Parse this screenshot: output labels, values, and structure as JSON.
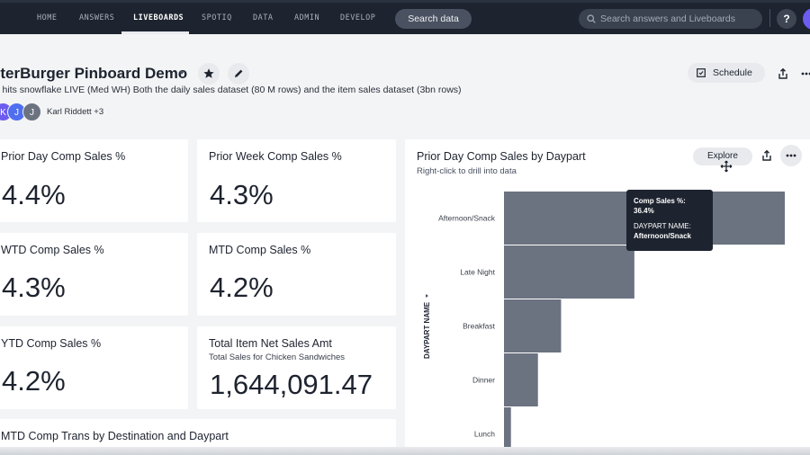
{
  "nav": {
    "items": [
      "HOME",
      "ANSWERS",
      "LIVEBOARDS",
      "SPOTIQ",
      "DATA",
      "ADMIN",
      "DEVELOP"
    ],
    "active": "LIVEBOARDS",
    "search_data_label": "Search data",
    "global_search_placeholder": "Search answers and Liveboards",
    "help_label": "?"
  },
  "header": {
    "title": "nterBurger Pinboard Demo",
    "description": "is hits snowflake LIVE (Med WH) Both the daily sales dataset (80 M rows) and the item sales dataset (3bn rows)",
    "avatars": [
      "K",
      "J",
      "J"
    ],
    "authors": "Karl Riddett +3",
    "schedule_label": "Schedule"
  },
  "kpis": [
    {
      "title": "Prior Day Comp Sales %",
      "value": "4.4%"
    },
    {
      "title": "Prior Week Comp Sales %",
      "value": "4.3%"
    },
    {
      "title": "WTD Comp Sales %",
      "value": "4.3%"
    },
    {
      "title": "MTD Comp Sales %",
      "value": "4.2%"
    },
    {
      "title": "YTD Comp Sales %",
      "value": "4.2%"
    },
    {
      "title": "Total Item Net Sales Amt",
      "subtitle": "Total Sales for Chicken Sandwiches",
      "value": "1,644,091.47"
    }
  ],
  "bottom_card_title": "MTD Comp Trans by Destination and Daypart",
  "chart_panel": {
    "title": "Prior Day Comp Sales by Daypart",
    "subtitle": "Right-click to drill into data",
    "explore_label": "Explore",
    "tooltip": {
      "line1": "Comp Sales %:",
      "line2": "36.4%",
      "line3": "DAYPART NAME:",
      "line4": "Afternoon/Snack"
    }
  },
  "chart_data": {
    "type": "bar",
    "orientation": "horizontal",
    "title": "Prior Day Comp Sales by Daypart",
    "categories": [
      "Afternoon/Snack",
      "Late Night",
      "Breakfast",
      "Dinner",
      "Lunch"
    ],
    "values": [
      36.4,
      16.9,
      7.4,
      4.4,
      0.9
    ],
    "ylabel": "DAYPART NAME",
    "xlim": [
      0,
      36.4
    ],
    "bar_color": "#6b7280",
    "grid": false,
    "legend": "none"
  },
  "colors": {
    "nav_bg": "#1d232f",
    "page_bg": "#f3f4f5",
    "avatar_1": "#6d5cf0",
    "avatar_2": "#4f6ff0",
    "avatar_3": "#6b7280"
  }
}
